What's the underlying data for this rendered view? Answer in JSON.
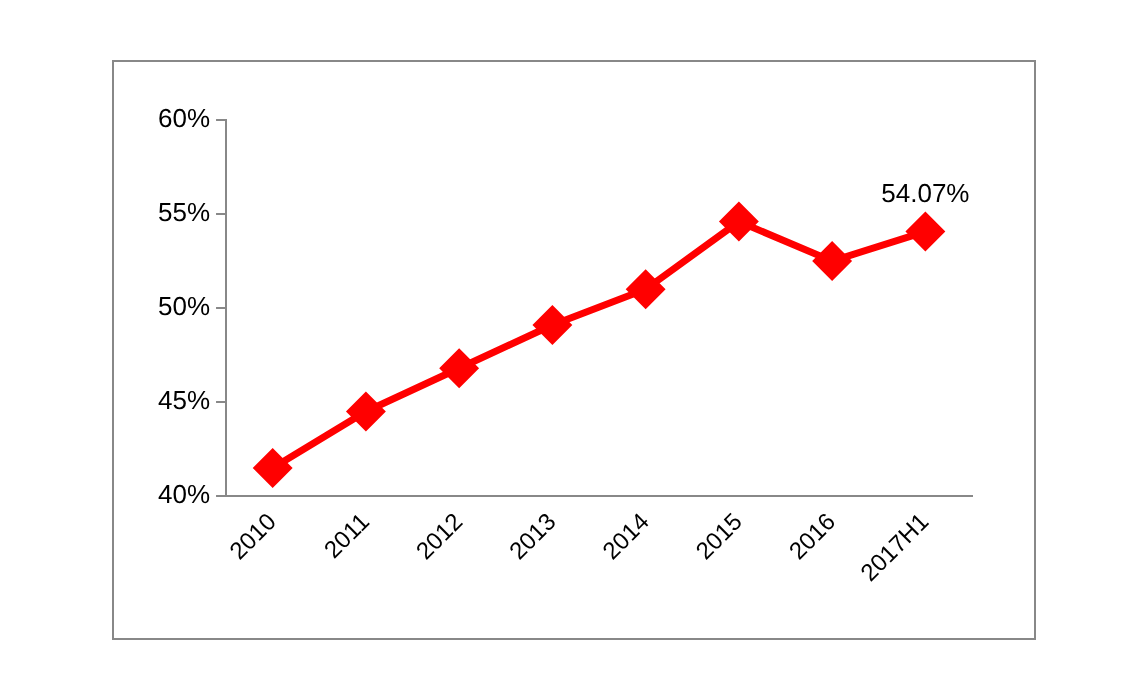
{
  "chart_data": {
    "type": "line",
    "categories": [
      "2010",
      "2011",
      "2012",
      "2013",
      "2014",
      "2015",
      "2016",
      "2017H1"
    ],
    "series": [
      {
        "color": "#ff0000",
        "values": [
          41.5,
          44.5,
          46.8,
          49.1,
          51.0,
          54.6,
          52.5,
          54.07
        ],
        "value_labels": [
          null,
          null,
          null,
          null,
          null,
          null,
          null,
          "54.07%"
        ]
      }
    ],
    "ylim": [
      40,
      60
    ],
    "yticks": [
      {
        "value": 40,
        "label": "40%"
      },
      {
        "value": 45,
        "label": "45%"
      },
      {
        "value": 50,
        "label": "50%"
      },
      {
        "value": 55,
        "label": "55%"
      },
      {
        "value": 60,
        "label": "60%"
      }
    ],
    "grid": false,
    "legend": false,
    "marker": "diamond",
    "line_style": "solid"
  }
}
